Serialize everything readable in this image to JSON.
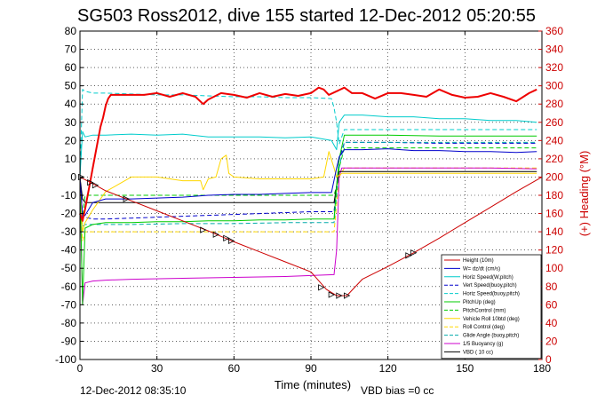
{
  "chart_data": {
    "type": "line",
    "title": "SG503 Ross2012, dive 155 started 12-Dec-2012 05:20:55",
    "xlabel": "Time (minutes)",
    "ylabel_right": "(+) Heading (°M)",
    "xlim": [
      0,
      180
    ],
    "ylim_left": [
      -100,
      80
    ],
    "ylim_right": [
      0,
      360
    ],
    "x_ticks": [
      0,
      30,
      60,
      90,
      120,
      150,
      180
    ],
    "y_ticks_left": [
      -100,
      -90,
      -80,
      -70,
      -60,
      -50,
      -40,
      -30,
      -20,
      -10,
      0,
      10,
      20,
      30,
      40,
      50,
      60,
      70,
      80
    ],
    "y_ticks_right": [
      0,
      20,
      40,
      60,
      80,
      100,
      120,
      140,
      160,
      180,
      200,
      220,
      240,
      260,
      280,
      300,
      320,
      340,
      360
    ],
    "grid": true,
    "legend_position": "bottom-right",
    "series": [
      {
        "name": "Height (10m)",
        "color": "#cc0000",
        "style": "solid",
        "x": [
          0,
          5,
          10,
          20,
          30,
          40,
          50,
          55,
          60,
          70,
          80,
          90,
          96,
          100,
          104,
          110,
          120,
          130,
          140,
          150,
          160,
          170,
          180
        ],
        "y": [
          0,
          -3.6,
          -7.5,
          -13,
          -18.5,
          -24,
          -29.5,
          -32.5,
          -35.5,
          -41,
          -46.5,
          -52,
          -61.5,
          -65,
          -65,
          -56,
          -49,
          -41.5,
          -33.5,
          -25,
          -16.5,
          -8,
          0
        ]
      },
      {
        "name": "W= dz/dt (cm/s)",
        "color": "#0000cc",
        "style": "solid",
        "x": [
          0,
          1,
          2,
          5,
          10,
          20,
          30,
          40,
          50,
          60,
          70,
          80,
          90,
          98,
          100,
          101,
          103,
          110,
          120,
          130,
          140,
          150,
          160,
          170,
          178
        ],
        "y": [
          0,
          -22,
          -21,
          -14,
          -12,
          -12,
          -11.5,
          -11,
          -10,
          -9.5,
          -9.5,
          -9,
          -8.5,
          -8.5,
          5,
          11,
          15,
          15,
          15.5,
          14.5,
          14.5,
          14,
          14,
          13.5,
          14
        ]
      },
      {
        "name": "Horiz Speed(W,pitch)",
        "color": "#00cccc",
        "style": "solid",
        "x": [
          0,
          1,
          2,
          5,
          10,
          20,
          30,
          40,
          50,
          60,
          70,
          80,
          90,
          98,
          100,
          101,
          103,
          110,
          120,
          130,
          140,
          150,
          160,
          170,
          178
        ],
        "y": [
          0,
          25,
          22,
          23,
          23,
          23.5,
          23,
          23.5,
          22,
          22,
          22,
          21.5,
          22,
          20,
          15,
          30,
          34,
          34,
          33,
          33,
          32,
          32,
          31,
          31,
          30
        ]
      },
      {
        "name": "Vert Speed(buoy,pitch)",
        "color": "#0000cc",
        "style": "dashed",
        "x": [
          0,
          1,
          2,
          5,
          10,
          20,
          30,
          40,
          50,
          60,
          70,
          80,
          90,
          99,
          101,
          103,
          120,
          140,
          160,
          178
        ],
        "y": [
          0,
          -20,
          -22,
          -23,
          -23,
          -22.5,
          -22,
          -21.5,
          -21,
          -20.5,
          -20,
          -19.5,
          -19,
          -19,
          10,
          19,
          19,
          18.5,
          18.5,
          18.5
        ]
      },
      {
        "name": "Horiz Speed(buoy,pitch)",
        "color": "#00cccc",
        "style": "dashed",
        "x": [
          0,
          1,
          2,
          5,
          10,
          20,
          30,
          40,
          50,
          60,
          70,
          80,
          90,
          98,
          99,
          100,
          101,
          103,
          120,
          140,
          160,
          178
        ],
        "y": [
          0,
          48,
          47,
          46,
          46,
          45.5,
          45,
          45,
          44.5,
          44,
          44,
          43.5,
          43.5,
          43,
          38,
          30,
          18,
          26,
          26,
          26,
          26,
          26
        ]
      },
      {
        "name": "PitchUp (deg)",
        "color": "#00cc00",
        "style": "solid",
        "x": [
          0,
          1,
          2,
          5,
          10,
          20,
          30,
          40,
          50,
          60,
          70,
          80,
          90,
          99,
          100,
          101,
          103,
          120,
          140,
          160,
          178
        ],
        "y": [
          0,
          -70,
          -28,
          -26,
          -25,
          -25,
          -24.5,
          -24.5,
          -24,
          -24,
          -23.5,
          -23.5,
          -23,
          -23,
          -5,
          10,
          23,
          23,
          22.5,
          22.5,
          22.5
        ]
      },
      {
        "name": "PitchControl (mm)",
        "color": "#00cc00",
        "style": "dashed",
        "x": [
          0,
          1,
          2,
          5,
          10,
          20,
          30,
          40,
          50,
          60,
          70,
          80,
          90,
          99,
          100,
          101,
          103,
          120,
          140,
          160,
          178
        ],
        "y": [
          0,
          -22,
          -10,
          -10,
          -10,
          -10,
          -10,
          -10,
          -10,
          -10,
          -10,
          -10,
          -10,
          -10,
          -5,
          5,
          16,
          16,
          16,
          16,
          16
        ]
      },
      {
        "name": "Vehicle Roll 10btd (deg)",
        "color": "#ffd700",
        "style": "solid",
        "x": [
          0,
          1,
          2,
          5,
          10,
          15,
          20,
          30,
          40,
          47,
          48,
          50,
          53,
          55,
          57,
          58,
          60,
          70,
          80,
          90,
          95,
          97,
          99,
          100,
          102,
          105,
          120,
          140,
          160,
          178
        ],
        "y": [
          0,
          -30,
          -25,
          -18,
          -8,
          -4,
          0,
          0,
          -2,
          -2,
          -7,
          -1,
          0,
          10,
          12,
          2,
          0,
          -1,
          -1,
          -1,
          0,
          14,
          5,
          0,
          2,
          2,
          2,
          2,
          2,
          2
        ]
      },
      {
        "name": "Roll Control (deg)",
        "color": "#ffd700",
        "style": "dashed",
        "x": [
          0,
          1,
          2,
          5,
          10,
          20,
          40,
          60,
          80,
          99,
          101,
          103,
          120,
          140,
          160,
          178
        ],
        "y": [
          0,
          -35,
          -30,
          -30,
          -30,
          -30,
          -30,
          -30,
          -30,
          -30,
          0,
          5,
          5,
          5,
          5,
          5
        ]
      },
      {
        "name": "Glide Angle (buoy,pitch)",
        "color": "#00aaaa",
        "style": "dashed",
        "x": [
          0,
          1,
          2,
          5,
          10,
          20,
          40,
          60,
          80,
          99,
          101,
          103,
          120,
          140,
          160,
          178
        ],
        "y": [
          0,
          -27,
          -26,
          -26,
          -26,
          -26,
          -25.5,
          -25.5,
          -25,
          -25,
          5,
          19,
          19,
          19,
          19,
          19
        ]
      },
      {
        "name": "1/5 Buoyancy (g)",
        "color": "#cc00cc",
        "style": "solid",
        "x": [
          0,
          1,
          2,
          5,
          10,
          20,
          40,
          60,
          80,
          99,
          100,
          101,
          102,
          120,
          140,
          160,
          178
        ],
        "y": [
          0,
          -70,
          -58,
          -57,
          -56.5,
          -56,
          -55.5,
          -55,
          -54.5,
          -53.5,
          -40,
          0,
          5,
          5,
          5,
          5,
          4.5
        ]
      },
      {
        "name": "VBD ( 10 cc)",
        "color": "#000000",
        "style": "solid",
        "x": [
          0,
          1,
          2,
          5,
          10,
          20,
          40,
          60,
          80,
          99,
          100,
          101,
          102,
          120,
          140,
          160,
          178
        ],
        "y": [
          0,
          -12,
          -14,
          -14,
          -14,
          -14,
          -14,
          -14,
          -14,
          -14,
          -5,
          3,
          3,
          3,
          3,
          3,
          3
        ]
      },
      {
        "name": "Heading",
        "color": "#ee0000",
        "style": "solid",
        "axis": "right",
        "x": [
          0,
          1,
          2,
          3,
          4,
          5,
          6,
          7,
          8,
          9,
          10,
          11,
          12,
          15,
          20,
          25,
          30,
          35,
          40,
          45,
          48,
          50,
          55,
          60,
          65,
          70,
          75,
          80,
          85,
          90,
          93,
          95,
          97,
          100,
          103,
          106,
          110,
          115,
          120,
          125,
          130,
          135,
          140,
          145,
          150,
          155,
          160,
          165,
          170,
          175,
          178
        ],
        "y": [
          160,
          152,
          165,
          180,
          195,
          210,
          225,
          240,
          255,
          265,
          278,
          286,
          290,
          290,
          290,
          290,
          292,
          288,
          292,
          288,
          280,
          285,
          292,
          290,
          287,
          292,
          288,
          291,
          289,
          292,
          298,
          296,
          290,
          294,
          298,
          292,
          292,
          286,
          292,
          292,
          290,
          288,
          296,
          290,
          287,
          288,
          292,
          288,
          283,
          292,
          296
        ]
      }
    ],
    "markers": [
      {
        "x": 0.5,
        "y": 0
      },
      {
        "x": 4,
        "y": -3
      },
      {
        "x": 6,
        "y": -4.5
      },
      {
        "x": 18,
        "y": -12
      },
      {
        "x": 48,
        "y": -29
      },
      {
        "x": 53,
        "y": -31.5
      },
      {
        "x": 57,
        "y": -33.5
      },
      {
        "x": 59,
        "y": -35
      },
      {
        "x": 94,
        "y": -60.5
      },
      {
        "x": 98,
        "y": -64.5
      },
      {
        "x": 101,
        "y": -65
      },
      {
        "x": 104,
        "y": -65
      },
      {
        "x": 128,
        "y": -43
      },
      {
        "x": 130,
        "y": -41.5
      }
    ]
  },
  "footer": {
    "start_time": "12-Dec-2012 08:35:10",
    "vbd_bias": "VBD bias =0 cc"
  }
}
